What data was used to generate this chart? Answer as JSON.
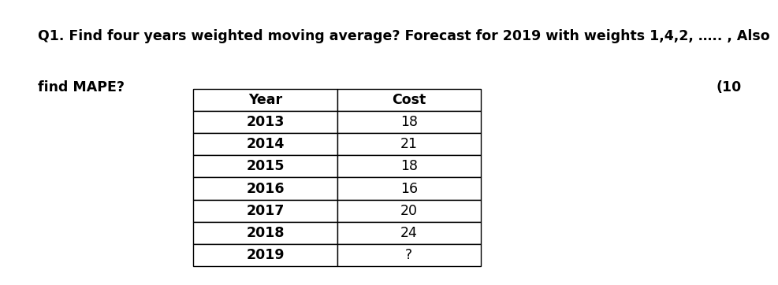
{
  "title_line1": "Q1. Find four years weighted moving average? Forecast for 2019 with weights 1,4,2, ….. , Also",
  "title_line2": "find MAPE?",
  "marks": "(10",
  "col_headers": [
    "Year",
    "Cost"
  ],
  "rows": [
    [
      "2013",
      "18"
    ],
    [
      "2014",
      "21"
    ],
    [
      "2015",
      "18"
    ],
    [
      "2016",
      "16"
    ],
    [
      "2017",
      "20"
    ],
    [
      "2018",
      "24"
    ],
    [
      "2019",
      "?"
    ]
  ],
  "bg_color": "#ffffff",
  "text_color": "#000000",
  "title_fontsize": 12.5,
  "table_fontsize": 12.5
}
